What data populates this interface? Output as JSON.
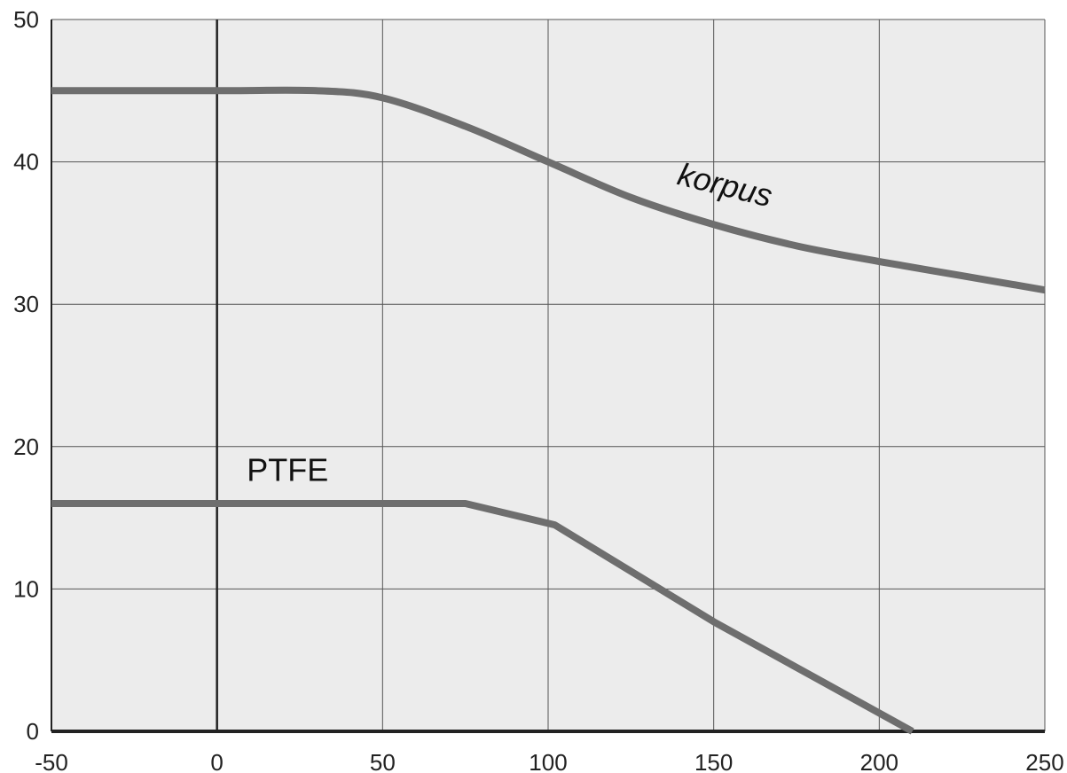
{
  "chart_data": {
    "type": "line",
    "title": "",
    "xlabel": "",
    "ylabel": "",
    "xlim": [
      -50,
      250
    ],
    "ylim": [
      0,
      50
    ],
    "x_ticks": [
      -50,
      0,
      50,
      100,
      150,
      200,
      250
    ],
    "y_ticks": [
      0,
      10,
      20,
      30,
      40,
      50
    ],
    "grid": true,
    "colors": {
      "plot_background": "#ececec",
      "grid": "#555555",
      "series": "#6e6e6e",
      "axis": "#222222"
    },
    "series": [
      {
        "name": "korpus",
        "points": [
          [
            -50,
            45
          ],
          [
            0,
            45
          ],
          [
            30,
            45
          ],
          [
            50,
            44.5
          ],
          [
            75,
            42.5
          ],
          [
            100,
            40
          ],
          [
            125,
            37.5
          ],
          [
            150,
            35.6
          ],
          [
            175,
            34.1
          ],
          [
            200,
            33
          ],
          [
            225,
            32
          ],
          [
            250,
            31
          ]
        ]
      },
      {
        "name": "PTFE",
        "points": [
          [
            -50,
            16
          ],
          [
            75,
            16
          ],
          [
            102,
            14.5
          ],
          [
            150,
            7.7
          ],
          [
            210,
            0
          ]
        ]
      }
    ]
  }
}
